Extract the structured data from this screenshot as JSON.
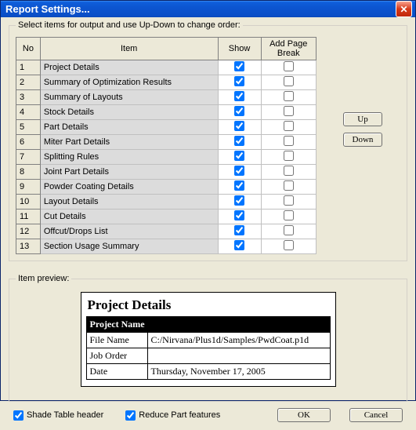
{
  "window": {
    "title": "Report Settings..."
  },
  "group1": {
    "label": "Select items for output and use Up-Down to change order:"
  },
  "table": {
    "headers": {
      "no": "No",
      "item": "Item",
      "show": "Show",
      "addbreak": "Add Page Break"
    },
    "rows": [
      {
        "no": "1",
        "item": "Project Details",
        "show": true,
        "brk": false
      },
      {
        "no": "2",
        "item": "Summary of Optimization Results",
        "show": true,
        "brk": false
      },
      {
        "no": "3",
        "item": "Summary of Layouts",
        "show": true,
        "brk": false
      },
      {
        "no": "4",
        "item": "Stock Details",
        "show": true,
        "brk": false
      },
      {
        "no": "5",
        "item": "Part Details",
        "show": true,
        "brk": false
      },
      {
        "no": "6",
        "item": "Miter Part Details",
        "show": true,
        "brk": false
      },
      {
        "no": "7",
        "item": "Splitting Rules",
        "show": true,
        "brk": false
      },
      {
        "no": "8",
        "item": "Joint Part Details",
        "show": true,
        "brk": false
      },
      {
        "no": "9",
        "item": "Powder Coating Details",
        "show": true,
        "brk": false
      },
      {
        "no": "10",
        "item": "Layout Details",
        "show": true,
        "brk": false
      },
      {
        "no": "11",
        "item": "Cut Details",
        "show": true,
        "brk": false
      },
      {
        "no": "12",
        "item": "Offcut/Drops List",
        "show": true,
        "brk": false
      },
      {
        "no": "13",
        "item": "Section Usage Summary",
        "show": true,
        "brk": false
      }
    ]
  },
  "sidebtns": {
    "up": "Up",
    "down": "Down"
  },
  "group2": {
    "label": "Item preview:"
  },
  "preview": {
    "title": "Project Details",
    "header": "Project Name",
    "rows": [
      {
        "label": "File Name",
        "value": "C:/Nirvana/Plus1d/Samples/PwdCoat.p1d"
      },
      {
        "label": "Job Order",
        "value": ""
      },
      {
        "label": "Date",
        "value": "Thursday, November 17, 2005"
      }
    ]
  },
  "footer": {
    "shade": "Shade Table header",
    "reduce": "Reduce Part features",
    "ok": "OK",
    "cancel": "Cancel"
  }
}
